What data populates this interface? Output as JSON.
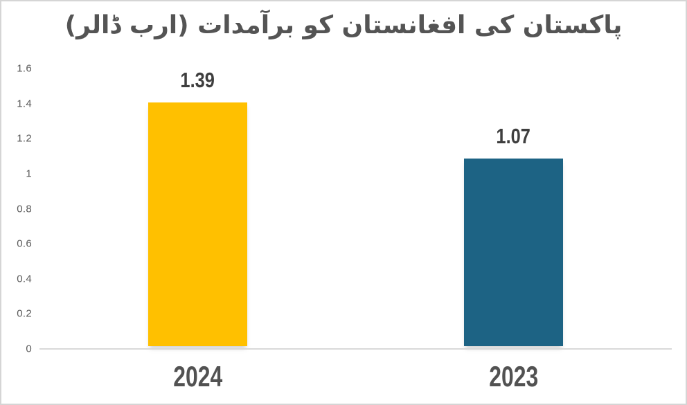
{
  "chart_data": {
    "type": "bar",
    "title": "پاکستان کی افغانستان کو برآمدات (ارب ڈالر)",
    "categories": [
      "2024",
      "2023"
    ],
    "values": [
      1.39,
      1.07
    ],
    "data_labels": [
      "1.39",
      "1.07"
    ],
    "bar_colors": [
      "#FFC000",
      "#1D6384"
    ],
    "xlabel": "",
    "ylabel": "",
    "ylim": [
      0,
      1.6
    ],
    "ytick_step": 0.2,
    "yticks": [
      "1.6",
      "1.4",
      "1.2",
      "1",
      "0.8",
      "0.6",
      "0.4",
      "0.2",
      "0"
    ],
    "grid": false,
    "legend_position": "none"
  },
  "colors": {
    "background": "#FFFFFF",
    "frame_border": "#D5D5D5",
    "axis_line": "#D9D9D9",
    "title_text": "#545454",
    "tick_text": "#595959",
    "data_label_text": "#3E3E3E",
    "category_label_text": "#525252",
    "bar_2024": "#FFC000",
    "bar_2023": "#1D6384"
  }
}
